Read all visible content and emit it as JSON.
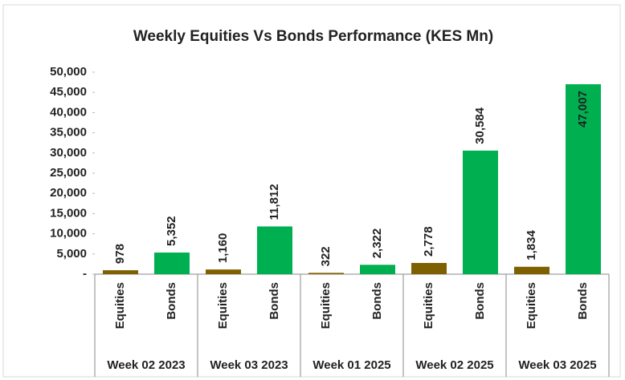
{
  "chart_data": {
    "type": "bar",
    "title": "Weekly Equities Vs Bonds Performance (KES Mn)",
    "categories": [
      "Week 02 2023",
      "Week 03 2023",
      "Week 01 2025",
      "Week 02 2025",
      "Week 03 2025"
    ],
    "series": [
      {
        "name": "Equities",
        "color": "#7f6000",
        "values": [
          978,
          1160,
          322,
          2778,
          1834
        ],
        "value_labels": [
          "978",
          "1,160",
          "322",
          "2,778",
          "1,834"
        ]
      },
      {
        "name": "Bonds",
        "color": "#00b050",
        "values": [
          5352,
          11812,
          2322,
          30584,
          47007
        ],
        "value_labels": [
          "5,352",
          "11,812",
          "2,322",
          "30,584",
          "47,007"
        ]
      }
    ],
    "ylim": [
      0,
      50000
    ],
    "yticks": [
      {
        "value": 0,
        "label": "-"
      },
      {
        "value": 5000,
        "label": "5,000"
      },
      {
        "value": 10000,
        "label": "10,000"
      },
      {
        "value": 15000,
        "label": "15,000"
      },
      {
        "value": 20000,
        "label": "20,000"
      },
      {
        "value": 25000,
        "label": "25,000"
      },
      {
        "value": 30000,
        "label": "30,000"
      },
      {
        "value": 35000,
        "label": "35,000"
      },
      {
        "value": 40000,
        "label": "40,000"
      },
      {
        "value": 45000,
        "label": "45,000"
      },
      {
        "value": 50000,
        "label": "50,000"
      }
    ],
    "grid": false
  }
}
